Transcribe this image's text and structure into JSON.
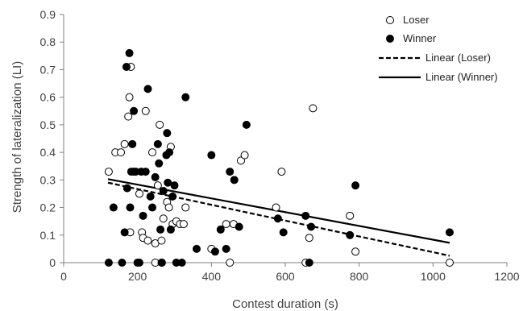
{
  "chart_data": {
    "type": "scatter",
    "title": "",
    "xlabel": "Contest duration (s)",
    "ylabel": "Strength of lateralization (LI)",
    "xlim": [
      0,
      1200
    ],
    "ylim": [
      0,
      0.9
    ],
    "x_ticks": [
      "0",
      "200",
      "400",
      "600",
      "800",
      "1000",
      "1200"
    ],
    "y_ticks": [
      "0",
      "0.1",
      "0.2",
      "0.3",
      "0.4",
      "0.5",
      "0.6",
      "0.7",
      "0.8",
      "0.9"
    ],
    "grid": false,
    "legend_position": "top-right",
    "series": [
      {
        "name": "Loser",
        "marker": "open-circle",
        "color": "#000000",
        "points": [
          [
            122,
            0.33
          ],
          [
            140,
            0.4
          ],
          [
            155,
            0.4
          ],
          [
            165,
            0.43
          ],
          [
            175,
            0.53
          ],
          [
            178,
            0.6
          ],
          [
            182,
            0.71
          ],
          [
            180,
            0.11
          ],
          [
            190,
            0.33
          ],
          [
            205,
            0.25
          ],
          [
            212,
            0.11
          ],
          [
            215,
            0.09
          ],
          [
            222,
            0.55
          ],
          [
            228,
            0.08
          ],
          [
            240,
            0.4
          ],
          [
            248,
            0.07
          ],
          [
            255,
            0.28
          ],
          [
            260,
            0.5
          ],
          [
            265,
            0.08
          ],
          [
            270,
            0.16
          ],
          [
            280,
            0.22
          ],
          [
            285,
            0.2
          ],
          [
            290,
            0.42
          ],
          [
            295,
            0.14
          ],
          [
            305,
            0.15
          ],
          [
            315,
            0.14
          ],
          [
            325,
            0.14
          ],
          [
            330,
            0.2
          ],
          [
            248,
            0.0
          ],
          [
            265,
            0.0
          ],
          [
            400,
            0.05
          ],
          [
            440,
            0.14
          ],
          [
            450,
            0.0
          ],
          [
            460,
            0.14
          ],
          [
            480,
            0.37
          ],
          [
            490,
            0.39
          ],
          [
            575,
            0.2
          ],
          [
            590,
            0.33
          ],
          [
            655,
            0.0
          ],
          [
            665,
            0.09
          ],
          [
            675,
            0.56
          ],
          [
            775,
            0.17
          ],
          [
            790,
            0.04
          ],
          [
            1045,
            0.0
          ]
        ]
      },
      {
        "name": "Winner",
        "marker": "filled-circle",
        "color": "#000000",
        "points": [
          [
            122,
            0.0
          ],
          [
            135,
            0.2
          ],
          [
            158,
            0.0
          ],
          [
            165,
            0.11
          ],
          [
            170,
            0.71
          ],
          [
            172,
            0.27
          ],
          [
            178,
            0.76
          ],
          [
            180,
            0.2
          ],
          [
            183,
            0.33
          ],
          [
            186,
            0.43
          ],
          [
            190,
            0.55
          ],
          [
            195,
            0.33
          ],
          [
            200,
            0.0
          ],
          [
            205,
            0.0
          ],
          [
            210,
            0.33
          ],
          [
            215,
            0.17
          ],
          [
            222,
            0.33
          ],
          [
            228,
            0.63
          ],
          [
            235,
            0.24
          ],
          [
            240,
            0.2
          ],
          [
            248,
            0.31
          ],
          [
            255,
            0.43
          ],
          [
            258,
            0.36
          ],
          [
            262,
            0.12
          ],
          [
            266,
            0.0
          ],
          [
            270,
            0.26
          ],
          [
            278,
            0.39
          ],
          [
            280,
            0.47
          ],
          [
            282,
            0.29
          ],
          [
            286,
            0.4
          ],
          [
            290,
            0.12
          ],
          [
            295,
            0.24
          ],
          [
            300,
            0.28
          ],
          [
            305,
            0.0
          ],
          [
            320,
            0.0
          ],
          [
            330,
            0.6
          ],
          [
            360,
            0.05
          ],
          [
            400,
            0.39
          ],
          [
            410,
            0.04
          ],
          [
            425,
            0.12
          ],
          [
            440,
            0.05
          ],
          [
            450,
            0.33
          ],
          [
            462,
            0.3
          ],
          [
            475,
            0.13
          ],
          [
            495,
            0.5
          ],
          [
            580,
            0.16
          ],
          [
            595,
            0.11
          ],
          [
            655,
            0.17
          ],
          [
            665,
            0.0
          ],
          [
            670,
            0.13
          ],
          [
            775,
            0.1
          ],
          [
            790,
            0.28
          ],
          [
            1045,
            0.11
          ]
        ]
      }
    ],
    "trendlines": [
      {
        "name": "Linear (Loser)",
        "style": "dashed",
        "color": "#000000",
        "x": [
          120,
          1045
        ],
        "y": [
          0.29,
          0.025
        ]
      },
      {
        "name": "Linear (Winner)",
        "style": "solid",
        "color": "#000000",
        "x": [
          120,
          1045
        ],
        "y": [
          0.303,
          0.072
        ]
      }
    ]
  }
}
